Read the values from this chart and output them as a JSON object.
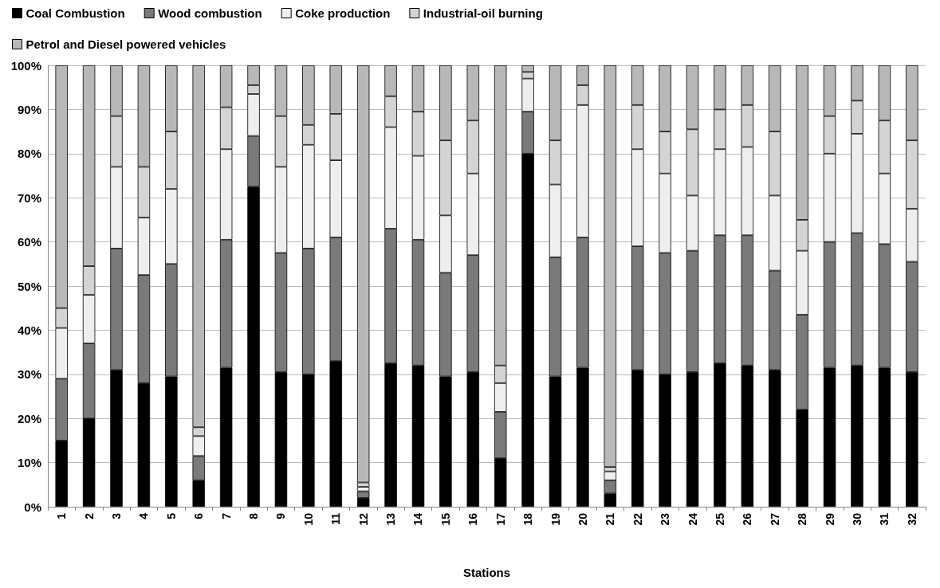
{
  "chart_data": {
    "type": "bar",
    "stacked": true,
    "xlabel": "Stations",
    "legend": "top",
    "grid": "y",
    "categories": [
      "1",
      "2",
      "3",
      "4",
      "5",
      "6",
      "7",
      "8",
      "9",
      "10",
      "11",
      "12",
      "13",
      "14",
      "15",
      "16",
      "17",
      "18",
      "19",
      "20",
      "21",
      "22",
      "23",
      "24",
      "25",
      "26",
      "27",
      "28",
      "29",
      "30",
      "31",
      "32"
    ],
    "ylim": [
      0,
      100
    ],
    "yticks": [
      {
        "value": 0,
        "label": "0%"
      },
      {
        "value": 10,
        "label": "10%"
      },
      {
        "value": 20,
        "label": "20%"
      },
      {
        "value": 30,
        "label": "30%"
      },
      {
        "value": 40,
        "label": "40%"
      },
      {
        "value": 50,
        "label": "50%"
      },
      {
        "value": 60,
        "label": "60%"
      },
      {
        "value": 70,
        "label": "70%"
      },
      {
        "value": 80,
        "label": "80%"
      },
      {
        "value": 90,
        "label": "90%"
      },
      {
        "value": 100,
        "label": "100%"
      }
    ],
    "series": [
      {
        "name": "Coal Combustion",
        "color": "#000000",
        "values": [
          15,
          20,
          31,
          28,
          29.5,
          6,
          31.5,
          72.5,
          30.5,
          30,
          33,
          2,
          32.5,
          32,
          29.5,
          30.5,
          11,
          80,
          29.5,
          31.5,
          3,
          31,
          30,
          30.5,
          32.5,
          32,
          31,
          22,
          31.5,
          32,
          31.5,
          30.5
        ]
      },
      {
        "name": "Wood combustion",
        "color": "#7a7a7a",
        "values": [
          14,
          17,
          27.5,
          24.5,
          25.5,
          5.5,
          29,
          11.5,
          27,
          28.5,
          28,
          1.5,
          30.5,
          28.5,
          23.5,
          26.5,
          10.5,
          9.5,
          27,
          29.5,
          3,
          28,
          27.5,
          27.5,
          29,
          29.5,
          22.5,
          21.5,
          28.5,
          30,
          28,
          25
        ]
      },
      {
        "name": "Coke production",
        "color": "#eeeeee",
        "values": [
          11.5,
          11,
          18.5,
          13,
          17,
          4.5,
          20.5,
          9.5,
          19.5,
          23.5,
          17.5,
          1,
          23,
          19,
          13,
          18.5,
          6.5,
          7.5,
          16.5,
          30,
          2,
          22,
          18,
          12.5,
          19.5,
          20,
          17,
          14.5,
          20,
          22.5,
          16,
          12
        ]
      },
      {
        "name": "Industrial-oil burning",
        "color": "#d4d4d4",
        "values": [
          4.5,
          6.5,
          11.5,
          11.5,
          13,
          2,
          9.5,
          2,
          11.5,
          4.5,
          10.5,
          1,
          7,
          10,
          17,
          12,
          4,
          1.5,
          10,
          4.5,
          1,
          10,
          9.5,
          15,
          9,
          9.5,
          14.5,
          7,
          8.5,
          7.5,
          12,
          15.5
        ]
      },
      {
        "name": "Petrol and Diesel powered vehicles",
        "color": "#b8b8b8",
        "values": [
          55,
          45.5,
          11.5,
          23,
          15,
          82,
          9.5,
          4.5,
          11.5,
          13.5,
          11,
          94.5,
          7,
          10.5,
          17,
          12.5,
          68,
          1.5,
          17,
          4.5,
          91,
          9,
          15,
          14.5,
          10,
          9,
          15,
          35,
          11.5,
          8,
          12.5,
          17
        ]
      }
    ]
  }
}
